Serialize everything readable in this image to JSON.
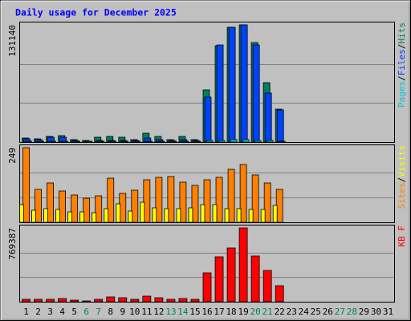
{
  "chart_data": {
    "type": "bar",
    "title": "Daily usage for December 2025",
    "categories": [
      "1",
      "2",
      "3",
      "4",
      "5",
      "6",
      "7",
      "8",
      "9",
      "10",
      "11",
      "12",
      "13",
      "14",
      "15",
      "16",
      "17",
      "18",
      "19",
      "20",
      "21",
      "22",
      "23",
      "24",
      "25",
      "26",
      "27",
      "28",
      "29",
      "30",
      "31"
    ],
    "weekend_days": [
      "6",
      "7",
      "13",
      "14",
      "20",
      "21",
      "27",
      "28"
    ],
    "panels": [
      {
        "id": "hits",
        "max_label": "131140",
        "ymax": 131140,
        "grid": true,
        "legend": [
          "Pages",
          "Files",
          "Hits"
        ],
        "series": [
          {
            "name": "Hits",
            "color": "#007f5f",
            "values": [
              4500,
              4000,
              6500,
              6800,
              2500,
              1500,
              5500,
              6000,
              5500,
              2800,
              10000,
              6000,
              2500,
              6500,
              2500,
              58500,
              108000,
              128500,
              131000,
              111000,
              66500,
              36500,
              0,
              0,
              0,
              0,
              0,
              0,
              0,
              0,
              0
            ]
          },
          {
            "name": "Files",
            "color": "#0042ff",
            "values": [
              3500,
              3000,
              5500,
              5800,
              2000,
              1000,
              2000,
              2000,
              2000,
              1500,
              4500,
              3000,
              1500,
              2500,
              1500,
              50500,
              108500,
              128000,
              131140,
              109000,
              55000,
              36000,
              0,
              0,
              0,
              0,
              0,
              0,
              0,
              0,
              0
            ]
          },
          {
            "name": "Pages",
            "color": "#00c8cd",
            "values": [
              500,
              400,
              600,
              600,
              300,
              200,
              300,
              300,
              300,
              300,
              500,
              400,
              300,
              500,
              300,
              1500,
              2000,
              2500,
              3000,
              2000,
              1500,
              1000,
              0,
              0,
              0,
              0,
              0,
              0,
              0,
              0,
              0
            ]
          }
        ]
      },
      {
        "id": "sites",
        "max_label": "249",
        "ymax": 249,
        "grid": true,
        "legend": [
          "Sites",
          "Visits"
        ],
        "series": [
          {
            "name": "Visits",
            "color": "#ff8000",
            "values": [
              249,
              111,
              130,
              105,
              92,
              80,
              88,
              147,
              97,
              107,
              143,
              151,
              152,
              133,
              122,
              142,
              150,
              178,
              194,
              159,
              131,
              109,
              0,
              0,
              0,
              0,
              0,
              0,
              0,
              0,
              0
            ]
          },
          {
            "name": "Sites",
            "color": "#ffff00",
            "values": [
              60,
              40,
              46,
              43,
              35,
              35,
              33,
              46,
              62,
              37,
              68,
              48,
              46,
              46,
              49,
              58,
              60,
              46,
              45,
              44,
              43,
              56,
              0,
              0,
              0,
              0,
              0,
              0,
              0,
              0,
              0
            ]
          }
        ]
      },
      {
        "id": "kbytes",
        "max_label": "769387",
        "ymax": 769387,
        "grid": true,
        "legend": [
          "KB F"
        ],
        "series": [
          {
            "name": "KB F",
            "color": "#ff0000",
            "values": [
              25000,
              22000,
              27000,
              30000,
              18000,
              10000,
              28000,
              48000,
              40000,
              23000,
              60000,
              45000,
              23000,
              35000,
              22000,
              305000,
              468000,
              560000,
              769387,
              475000,
              330000,
              165000,
              0,
              0,
              0,
              0,
              0,
              0,
              0,
              0,
              0
            ]
          }
        ]
      }
    ]
  }
}
